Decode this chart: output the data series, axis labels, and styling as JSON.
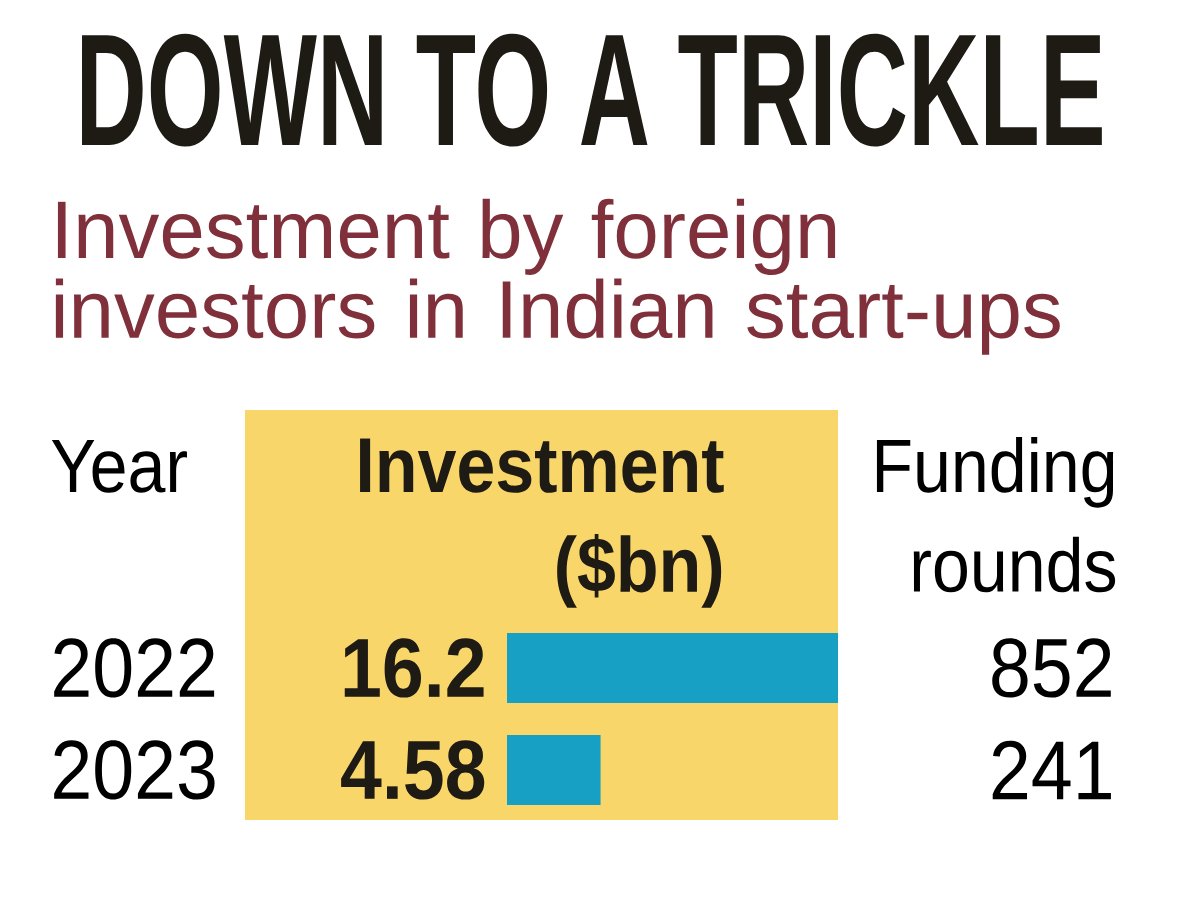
{
  "chart_data": {
    "type": "bar",
    "orientation": "horizontal",
    "title": "DOWN TO A TRICKLE",
    "subtitle": "Investment by foreign investors in Indian start-ups",
    "ylabel": "Year",
    "xlabel": "Investment ($bn)",
    "categories": [
      "2022",
      "2023"
    ],
    "values": [
      16.2,
      4.58
    ],
    "color": "#18a0c4",
    "data_labels": true,
    "annotations": [
      "Funding rounds",
      "852",
      "241"
    ]
  }
}
